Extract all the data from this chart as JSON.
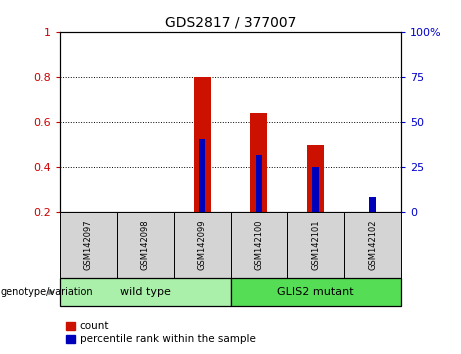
{
  "title": "GDS2817 / 377007",
  "samples": [
    "GSM142097",
    "GSM142098",
    "GSM142099",
    "GSM142100",
    "GSM142101",
    "GSM142102"
  ],
  "count_values": [
    0.0,
    0.0,
    0.8,
    0.64,
    0.5,
    0.0
  ],
  "percentile_values": [
    0.0,
    0.0,
    0.525,
    0.455,
    0.4,
    0.27
  ],
  "ylim_left": [
    0.2,
    1.0
  ],
  "ylim_right": [
    0,
    100
  ],
  "yticks_left": [
    0.2,
    0.4,
    0.6,
    0.8,
    1.0
  ],
  "yticks_right": [
    0,
    25,
    50,
    75,
    100
  ],
  "ytick_labels_left": [
    "0.2",
    "0.4",
    "0.6",
    "0.8",
    "1"
  ],
  "ytick_labels_right": [
    "0",
    "25",
    "50",
    "75",
    "100%"
  ],
  "left_tick_color": "#cc0000",
  "right_tick_color": "#0000cc",
  "bar_color_red": "#cc1100",
  "bar_color_blue": "#0000bb",
  "red_bar_width": 0.3,
  "blue_bar_width": 0.12,
  "groups": [
    {
      "label": "wild type",
      "indices": [
        0,
        1,
        2
      ],
      "color": "#aaf0aa"
    },
    {
      "label": "GLIS2 mutant",
      "indices": [
        3,
        4,
        5
      ],
      "color": "#55dd55"
    }
  ],
  "group_label": "genotype/variation",
  "legend_count": "count",
  "legend_percentile": "percentile rank within the sample",
  "grid_color": "black",
  "sample_box_color": "#d4d4d4",
  "spine_color": "black"
}
